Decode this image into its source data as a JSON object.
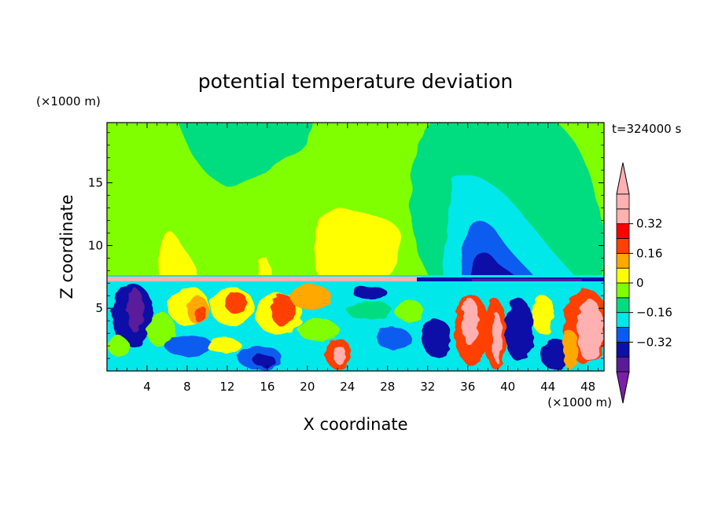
{
  "chart_data": {
    "type": "heatmap",
    "title": "potential temperature deviation",
    "xlabel": "X coordinate",
    "ylabel": "Z coordinate",
    "x_unit": "(×1000 m)",
    "y_unit": "(×1000 m)",
    "time_label": "t=324000 s",
    "xlim": [
      0,
      49.6
    ],
    "ylim": [
      0,
      19.8
    ],
    "x_ticks": [
      4,
      8,
      12,
      16,
      20,
      24,
      28,
      32,
      36,
      40,
      44,
      48
    ],
    "y_ticks": [
      5,
      10,
      15
    ],
    "colorbar": {
      "levels": [
        -0.48,
        -0.4,
        -0.32,
        -0.24,
        -0.16,
        -0.08,
        0,
        0.08,
        0.16,
        0.24,
        0.32,
        0.4,
        0.48
      ],
      "tick_values": [
        0.32,
        0.16,
        0,
        -0.16,
        -0.32
      ],
      "tick_labels": [
        "0.32",
        "0.16",
        "0",
        "−0.16",
        "−0.32"
      ],
      "colors": [
        "#7b1fa8",
        "#5a1a9a",
        "#0c10a8",
        "#0a5cf0",
        "#00e8ea",
        "#00dd80",
        "#80ff00",
        "#ffff00",
        "#ffa800",
        "#ff4000",
        "#ff0000",
        "#ffb0b0"
      ]
    },
    "regions": [
      {
        "x": 24.8,
        "y": 16.5,
        "value": 0.04
      },
      {
        "x": 12,
        "y": 18.2,
        "value": -0.04
      },
      {
        "x": 24,
        "y": 10.5,
        "value": 0.12
      },
      {
        "x": 6.5,
        "y": 9.0,
        "value": 0.12
      },
      {
        "x": 37.5,
        "y": 13.5,
        "value": -0.04
      },
      {
        "x": 38,
        "y": 11.0,
        "value": -0.12
      },
      {
        "x": 38.3,
        "y": 9.8,
        "value": -0.28
      },
      {
        "x": 39.5,
        "y": 8.5,
        "value": -0.36
      },
      {
        "x": 17,
        "y": 7.4,
        "value": 0.44
      },
      {
        "x": 40,
        "y": 7.4,
        "value": -0.36
      },
      {
        "x": 3,
        "y": 5.5,
        "value": -0.36
      },
      {
        "x": 12,
        "y": 4.5,
        "value": 0.3
      },
      {
        "x": 24,
        "y": 4.0,
        "value": -0.12
      },
      {
        "x": 37.5,
        "y": 3.0,
        "value": 0.44
      },
      {
        "x": 47,
        "y": 4.0,
        "value": 0.44
      },
      {
        "x": 45,
        "y": 2.5,
        "value": -0.28
      }
    ]
  }
}
